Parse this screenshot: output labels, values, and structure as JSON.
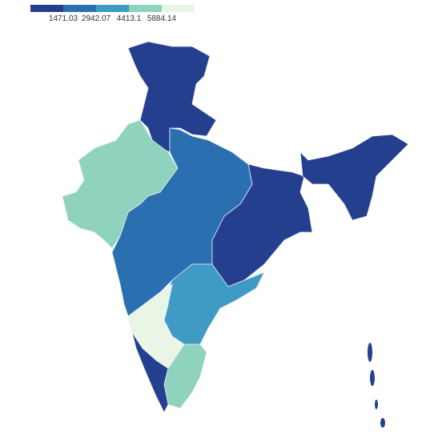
{
  "legend": {
    "colors": [
      "#253f8f",
      "#2a6fb0",
      "#3f9bc6",
      "#8fd2bd",
      "#e9f6e5"
    ],
    "ticks": [
      1471.03,
      2942.07,
      4413.1,
      5884.14
    ]
  }
}
